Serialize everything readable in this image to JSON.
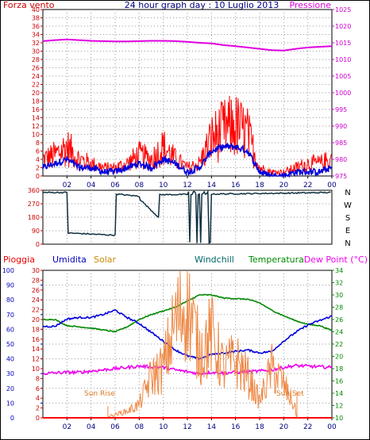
{
  "header": {
    "left_label": "Forza vento",
    "title": "24 hour graph day : 10 Luglio 2013",
    "right_label": "Pressione"
  },
  "colors": {
    "wind": "#ff0000",
    "wind_avg": "#0000dd",
    "pressure": "#e000e0",
    "dir": "#103040",
    "rain": "#ff0000",
    "humidity": "#0000dd",
    "solar": "#ee8844",
    "temp": "#008800",
    "dewpoint": "#ee00ee",
    "axis_left": "#cc0000",
    "axis_right_p": "#cc00cc",
    "axis_left_bottom": "#0000bb",
    "axis_right_bottom": "#008800"
  },
  "x_ticks": [
    "02",
    "04",
    "06",
    "08",
    "10",
    "12",
    "14",
    "16",
    "18",
    "20",
    "22",
    "00"
  ],
  "dir_labels": [
    "N",
    "W",
    "S",
    "E",
    "N"
  ],
  "legend_bottom": {
    "pioggia": "Pioggia",
    "umidita": "Umidita",
    "solar": "Solar",
    "windchill": "Windchill",
    "temperatura": "Temperatura",
    "dewpoint": "Dew Point (°C)"
  },
  "annotations": {
    "sunrise": "Sun Rise",
    "sunset": "Sun Set"
  },
  "chart_data": [
    {
      "type": "line",
      "title": "24 hour graph day : 10 Luglio 2013",
      "x_hours": [
        0,
        1,
        2,
        3,
        4,
        5,
        6,
        7,
        8,
        9,
        10,
        11,
        12,
        13,
        14,
        15,
        16,
        17,
        18,
        19,
        20,
        21,
        22,
        23,
        24
      ],
      "ylim": [
        0,
        40
      ],
      "yticks_left": [
        0,
        2,
        4,
        6,
        8,
        10,
        12,
        14,
        16,
        18,
        20,
        22,
        24,
        26,
        28,
        30,
        32,
        34,
        36,
        38,
        40
      ],
      "ylim_right": [
        975,
        1025
      ],
      "yticks_right": [
        975,
        980,
        985,
        990,
        995,
        1000,
        1005,
        1010,
        1015,
        1020,
        1025
      ],
      "series": [
        {
          "name": "Forza vento",
          "axis": "left",
          "values": [
            4,
            5,
            7,
            4,
            3,
            2,
            2,
            3,
            5,
            4,
            7,
            4,
            2,
            3,
            9,
            11,
            12,
            10,
            2,
            1,
            1,
            2,
            3,
            3,
            4
          ]
        },
        {
          "name": "avg",
          "axis": "left",
          "values": [
            2,
            3,
            4,
            2,
            2,
            1,
            1,
            2,
            3,
            2,
            4,
            3,
            1,
            2,
            6,
            7,
            7,
            6,
            1,
            0,
            0,
            1,
            1,
            1,
            2
          ]
        },
        {
          "name": "Pressione",
          "axis": "right",
          "values": [
            1015.5,
            1015.8,
            1016,
            1015.8,
            1015.6,
            1015.5,
            1015.4,
            1015.4,
            1015.5,
            1015.6,
            1015.6,
            1015.5,
            1015.3,
            1015,
            1014.8,
            1014.3,
            1014,
            1013.6,
            1013.2,
            1012.8,
            1012.7,
            1013.2,
            1013.6,
            1013.8,
            1014
          ]
        }
      ],
      "grid": true
    },
    {
      "type": "line",
      "x_hours": [
        0,
        2,
        2.05,
        6,
        6.05,
        8,
        8.05,
        9.6,
        9.65,
        24
      ],
      "ylim": [
        0,
        360
      ],
      "yticks": [
        0,
        90,
        180,
        270,
        360
      ],
      "series": [
        {
          "name": "direction",
          "values": [
            345,
            345,
            75,
            60,
            335,
            320,
            300,
            180,
            330,
            345
          ]
        }
      ],
      "grid": true
    },
    {
      "type": "line",
      "x_hours": [
        0,
        1,
        2,
        3,
        4,
        5,
        6,
        7,
        8,
        9,
        10,
        11,
        12,
        13,
        14,
        15,
        16,
        17,
        18,
        19,
        20,
        21,
        22,
        23,
        24
      ],
      "ylim": [
        0,
        100
      ],
      "yticks_left": [
        0,
        10,
        20,
        30,
        40,
        50,
        60,
        70,
        80,
        90,
        100
      ],
      "ylim_right": [
        10,
        34
      ],
      "yticks_right": [
        10,
        12,
        14,
        16,
        18,
        20,
        22,
        24,
        26,
        28,
        30,
        32,
        34
      ],
      "series": [
        {
          "name": "Umidita",
          "axis": "left",
          "values": [
            62,
            62,
            67,
            68,
            68,
            70,
            73,
            68,
            64,
            58,
            52,
            46,
            42,
            40,
            43,
            44,
            45,
            46,
            44,
            45,
            52,
            58,
            63,
            66,
            69
          ]
        },
        {
          "name": "Temperatura",
          "axis": "right",
          "values": [
            26,
            26,
            25,
            24.8,
            24.6,
            24.3,
            24,
            24.8,
            26,
            26.8,
            27.4,
            28,
            29,
            30,
            30,
            29.5,
            29.4,
            29.3,
            28.7,
            27.5,
            26.6,
            25.8,
            25.2,
            25,
            24.2
          ]
        },
        {
          "name": "Dew Point",
          "axis": "right",
          "values": [
            17.2,
            17.3,
            17.4,
            17.4,
            17.6,
            17.8,
            18,
            18.2,
            18.4,
            18.3,
            18.2,
            17.8,
            17.5,
            17.2,
            17.4,
            17.3,
            17.4,
            17.5,
            17.6,
            17.8,
            18.2,
            18.5,
            18.4,
            18.3,
            18.2
          ]
        },
        {
          "name": "Solar",
          "axis": "left",
          "values": [
            0,
            0,
            0,
            0,
            0,
            0,
            2,
            4,
            8,
            25,
            30,
            58,
            70,
            40,
            50,
            30,
            35,
            25,
            10,
            30,
            20,
            5,
            0,
            0,
            0
          ]
        },
        {
          "name": "Pioggia",
          "axis": "left",
          "values": [
            0,
            0,
            0,
            0,
            0,
            0,
            0,
            0,
            0,
            0,
            0,
            0,
            0,
            0,
            0,
            0,
            0,
            0,
            0,
            0,
            0,
            0,
            0,
            0,
            0
          ]
        }
      ],
      "grid": true
    }
  ]
}
